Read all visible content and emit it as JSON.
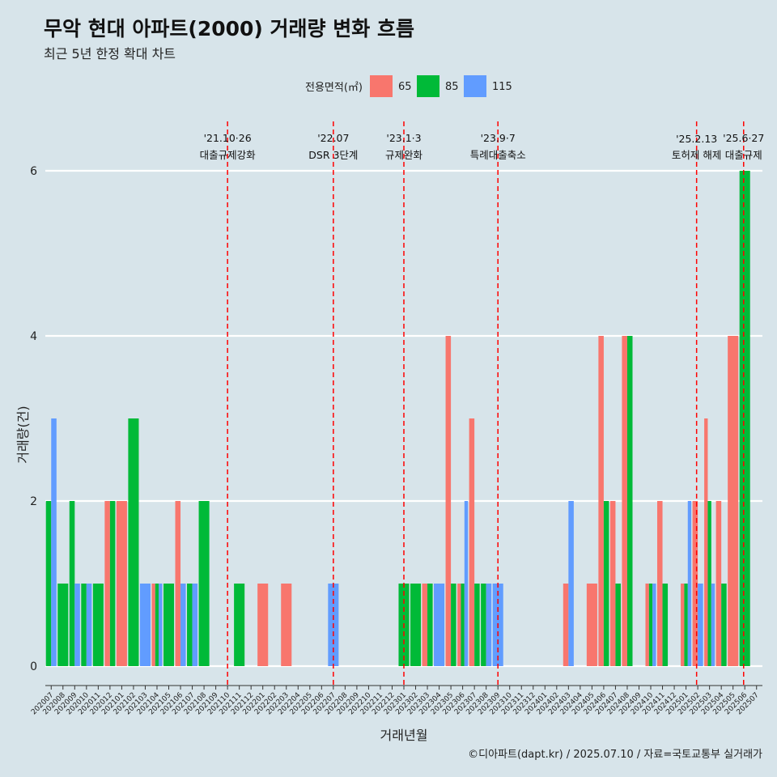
{
  "header": {
    "title": "무악 현대 아파트(2000) 거래량 변화 흐름",
    "subtitle": "최근 5년 한정 확대 차트"
  },
  "caption": "©디아파트(dapt.kr) / 2025.07.10 / 자료=국토교통부 실거래가",
  "colors": {
    "65": "#f8766d",
    "85": "#00ba38",
    "115": "#619cff",
    "event_line": "#ff0000",
    "gridline": "#ffffff",
    "background": "#d7e4ea"
  },
  "chart_data": {
    "type": "bar",
    "xlabel": "거래년월",
    "ylabel": "거래량(건)",
    "ylim": [
      0,
      6
    ],
    "yticks": [
      0,
      2,
      4,
      6
    ],
    "legend": {
      "title": "전용면적(㎡)",
      "placement": "top"
    },
    "categories": [
      "202007",
      "202008",
      "202009",
      "202010",
      "202011",
      "202012",
      "202101",
      "202102",
      "202103",
      "202104",
      "202105",
      "202106",
      "202107",
      "202108",
      "202109",
      "202110",
      "202111",
      "202112",
      "202201",
      "202202",
      "202203",
      "202204",
      "202205",
      "202206",
      "202207",
      "202208",
      "202209",
      "202210",
      "202211",
      "202212",
      "202301",
      "202302",
      "202303",
      "202304",
      "202305",
      "202306",
      "202307",
      "202308",
      "202309",
      "202310",
      "202311",
      "202312",
      "202401",
      "202402",
      "202403",
      "202404",
      "202405",
      "202406",
      "202407",
      "202408",
      "202409",
      "202410",
      "202411",
      "202412",
      "202501",
      "202502",
      "202503",
      "202504",
      "202505",
      "202506",
      "202507"
    ],
    "series": [
      {
        "name": "65",
        "values": [
          0,
          0,
          0,
          0,
          0,
          2,
          2,
          0,
          0,
          1,
          0,
          2,
          0,
          0,
          0,
          0,
          0,
          0,
          1,
          0,
          1,
          0,
          0,
          0,
          0,
          0,
          0,
          0,
          0,
          0,
          0,
          0,
          1,
          0,
          4,
          1,
          3,
          0,
          0,
          0,
          0,
          0,
          0,
          0,
          1,
          0,
          1,
          4,
          2,
          4,
          0,
          1,
          2,
          0,
          1,
          2,
          3,
          2,
          4,
          0,
          0
        ]
      },
      {
        "name": "85",
        "values": [
          2,
          1,
          2,
          1,
          1,
          2,
          0,
          3,
          0,
          1,
          1,
          0,
          1,
          2,
          0,
          0,
          1,
          0,
          0,
          0,
          0,
          0,
          0,
          0,
          0,
          0,
          0,
          0,
          0,
          0,
          1,
          1,
          1,
          0,
          1,
          1,
          1,
          1,
          0,
          0,
          0,
          0,
          0,
          0,
          0,
          0,
          0,
          2,
          1,
          4,
          0,
          1,
          1,
          0,
          1,
          0,
          2,
          1,
          0,
          6,
          0
        ]
      },
      {
        "name": "115",
        "values": [
          3,
          0,
          1,
          1,
          0,
          0,
          0,
          0,
          1,
          1,
          0,
          1,
          1,
          0,
          0,
          0,
          0,
          0,
          0,
          0,
          0,
          0,
          0,
          0,
          1,
          0,
          0,
          0,
          0,
          0,
          0,
          0,
          0,
          1,
          0,
          2,
          0,
          1,
          1,
          0,
          0,
          0,
          0,
          0,
          2,
          0,
          0,
          0,
          0,
          0,
          0,
          1,
          0,
          0,
          2,
          1,
          1,
          0,
          0,
          0,
          0
        ]
      }
    ],
    "events": [
      {
        "position": 15.5,
        "date": "'21.10·26",
        "label": "대출규제강화"
      },
      {
        "position": 24.5,
        "date": "'22.07",
        "label": "DSR 3단계"
      },
      {
        "position": 30.5,
        "date": "'23.1·3",
        "label": "규제완화"
      },
      {
        "position": 38.5,
        "date": "'23.9·7",
        "label": "특례대출축소"
      },
      {
        "position": 55.4,
        "date": "'25.2.13",
        "label": "토허제 해제"
      },
      {
        "position": 59.4,
        "date": "'25.6·27",
        "label": "대출규제"
      }
    ]
  }
}
